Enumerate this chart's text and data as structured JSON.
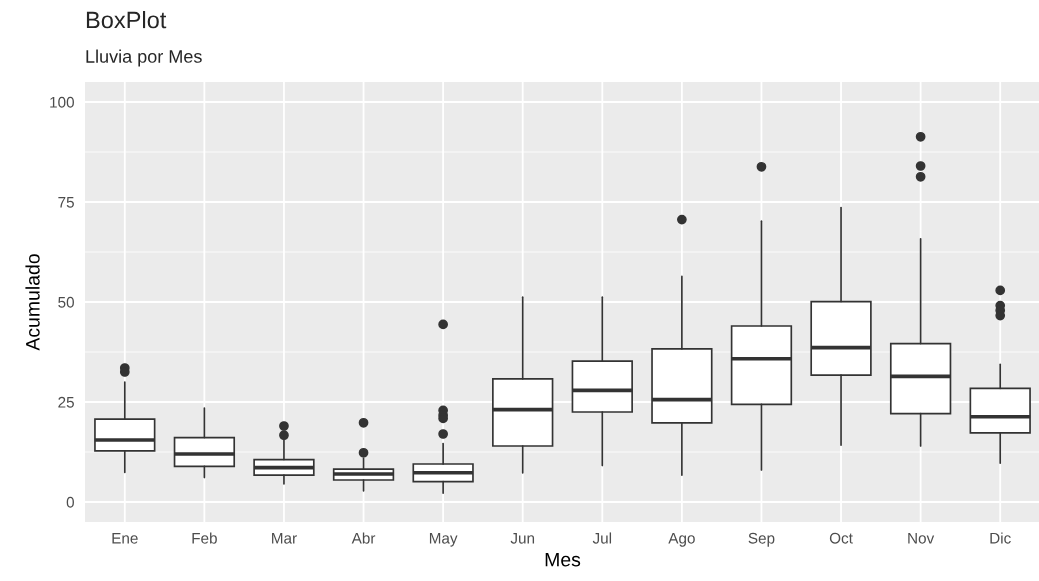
{
  "chart_data": {
    "type": "box",
    "title": "BoxPlot",
    "subtitle": "Lluvia por Mes",
    "xlabel": "Mes",
    "ylabel": "Acumulado",
    "categories": [
      "Ene",
      "Feb",
      "Mar",
      "Abr",
      "May",
      "Jun",
      "Jul",
      "Ago",
      "Sep",
      "Oct",
      "Nov",
      "Dic"
    ],
    "boxes": [
      {
        "low": 7.4,
        "q1": 12.8,
        "median": 15.5,
        "q3": 20.7,
        "high": 30.0,
        "outliers": [
          33.5,
          32.5
        ]
      },
      {
        "low": 6.1,
        "q1": 8.9,
        "median": 12.0,
        "q3": 16.1,
        "high": 23.5
      },
      {
        "low": 4.5,
        "q1": 6.7,
        "median": 8.6,
        "q3": 10.6,
        "high": 15.5,
        "outliers": [
          19.0,
          16.7
        ]
      },
      {
        "low": 2.8,
        "q1": 5.5,
        "median": 7.0,
        "q3": 8.2,
        "high": 10.9,
        "outliers": [
          19.8,
          12.3
        ]
      },
      {
        "low": 2.2,
        "q1": 5.1,
        "median": 7.3,
        "q3": 9.5,
        "high": 14.6,
        "outliers": [
          44.4,
          22.9,
          21.7,
          20.9,
          17.0
        ]
      },
      {
        "low": 7.3,
        "q1": 14.0,
        "median": 23.1,
        "q3": 30.8,
        "high": 51.2
      },
      {
        "low": 9.1,
        "q1": 22.5,
        "median": 27.9,
        "q3": 35.2,
        "high": 51.2
      },
      {
        "low": 6.7,
        "q1": 19.8,
        "median": 25.6,
        "q3": 38.3,
        "high": 56.4,
        "outliers": [
          70.6
        ]
      },
      {
        "low": 8.0,
        "q1": 24.4,
        "median": 35.8,
        "q3": 44.0,
        "high": 70.2,
        "outliers": [
          83.8
        ]
      },
      {
        "low": 14.2,
        "q1": 31.7,
        "median": 38.6,
        "q3": 50.1,
        "high": 73.6
      },
      {
        "low": 14.0,
        "q1": 22.1,
        "median": 31.4,
        "q3": 39.6,
        "high": 65.8,
        "outliers": [
          91.3,
          84.0,
          81.3
        ]
      },
      {
        "low": 9.7,
        "q1": 17.3,
        "median": 21.3,
        "q3": 28.4,
        "high": 34.4,
        "outliers": [
          52.9,
          49.1,
          47.9,
          46.6
        ]
      }
    ],
    "ylim": [
      -5,
      105
    ],
    "yticks": [
      0,
      25,
      50,
      75,
      100
    ],
    "grid": true
  }
}
